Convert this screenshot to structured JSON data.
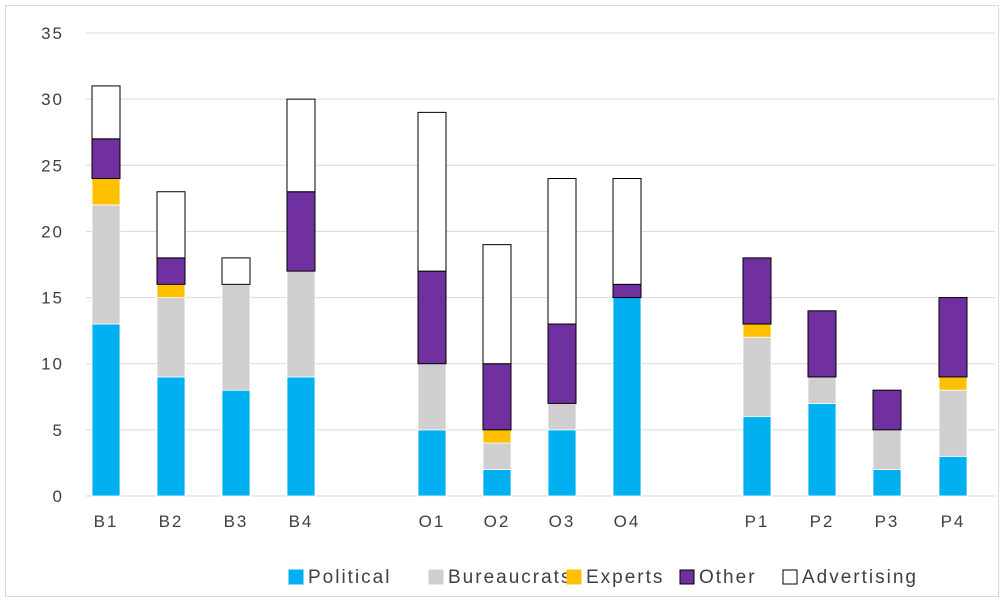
{
  "chart_data": {
    "type": "bar",
    "stacked": true,
    "categories": [
      "B1",
      "B2",
      "B3",
      "B4",
      "O1",
      "O2",
      "O3",
      "O4",
      "P1",
      "P2",
      "P3",
      "P4"
    ],
    "groups": [
      [
        "B1",
        "B2",
        "B3",
        "B4"
      ],
      [
        "O1",
        "O2",
        "O3",
        "O4"
      ],
      [
        "P1",
        "P2",
        "P3",
        "P4"
      ]
    ],
    "series": [
      {
        "name": "Political",
        "color": "#00b0f0",
        "values": [
          13,
          9,
          8,
          9,
          5,
          2,
          5,
          15,
          6,
          7,
          2,
          3
        ]
      },
      {
        "name": "Bureaucrats",
        "color": "#d0cece",
        "values": [
          9,
          6,
          8,
          8,
          5,
          2,
          2,
          0,
          6,
          2,
          3,
          5
        ]
      },
      {
        "name": "Experts",
        "color": "#ffc000",
        "values": [
          2,
          1,
          0,
          0,
          0,
          1,
          0,
          0,
          1,
          0,
          0,
          1
        ]
      },
      {
        "name": "Other",
        "color": "#7030a0",
        "values": [
          3,
          2,
          0,
          6,
          7,
          5,
          6,
          1,
          5,
          5,
          3,
          6
        ]
      },
      {
        "name": "Advertising",
        "color": "#ffffff",
        "values": [
          4,
          5,
          2,
          7,
          12,
          9,
          11,
          8,
          0,
          0,
          0,
          0
        ]
      }
    ],
    "yticks": [
      0,
      5,
      10,
      15,
      20,
      25,
      30,
      35
    ],
    "ylim": [
      0,
      35
    ],
    "xlabel": "",
    "ylabel": "",
    "grid": true,
    "legend_position": "bottom"
  }
}
